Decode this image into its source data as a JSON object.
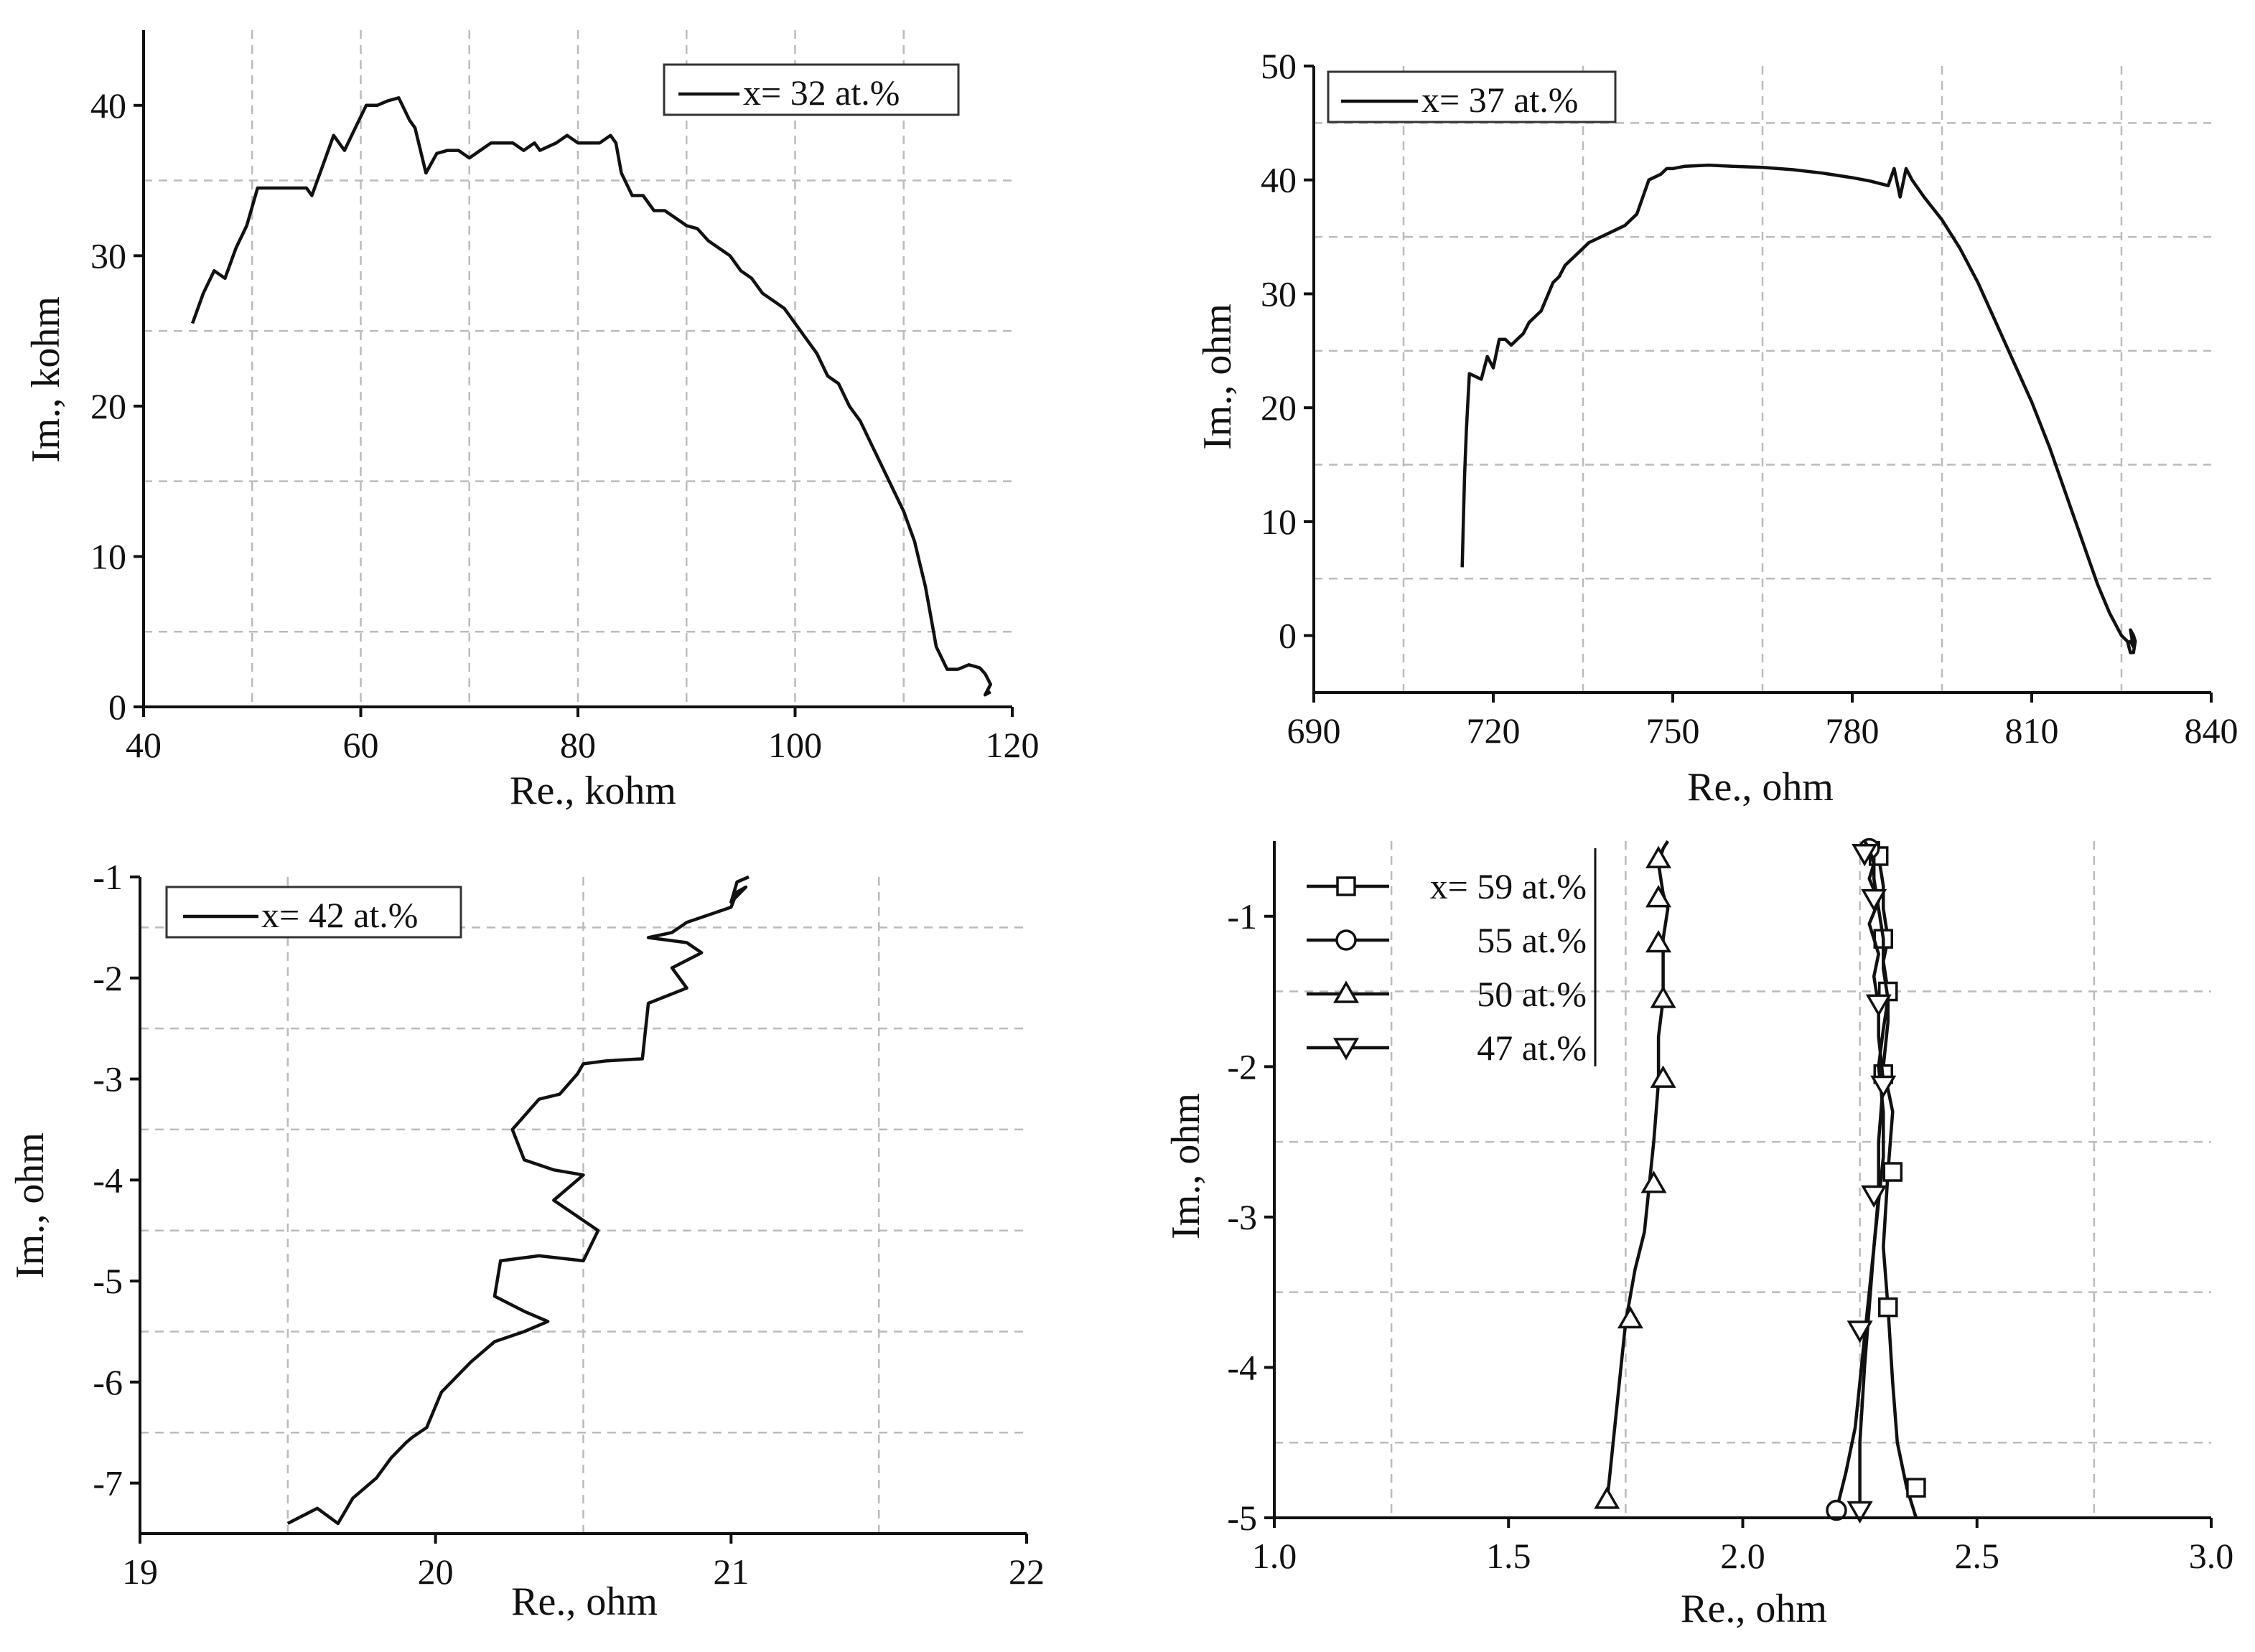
{
  "chart_data": [
    {
      "type": "line",
      "xlabel": "Re., kohm",
      "ylabel": "Im., kohm",
      "xlim": [
        40,
        120
      ],
      "ylim": [
        0,
        45
      ],
      "xticks": [
        40,
        60,
        80,
        100,
        120
      ],
      "yticks": [
        0,
        10,
        20,
        30,
        40
      ],
      "xtick_labels": [
        "40",
        "60",
        "80",
        "100",
        "120"
      ],
      "ytick_labels": [
        "0",
        "10",
        "20",
        "30",
        "40"
      ],
      "xgrid": [
        50,
        60,
        70,
        80,
        90,
        100,
        110
      ],
      "ygrid": [
        5,
        15,
        25,
        35
      ],
      "legend_position": "top-right",
      "series": [
        {
          "name": "x= 32 at.%",
          "marker": "none",
          "x": [
            44.5,
            45.5,
            46.5,
            47.5,
            48.5,
            49.5,
            50.5,
            51.5,
            53,
            55,
            55.5,
            56.5,
            57.5,
            58.5,
            59.5,
            60.5,
            61.5,
            62.5,
            63.5,
            64.5,
            65,
            66,
            67,
            68,
            69,
            70,
            71,
            72,
            73,
            74,
            75,
            76,
            76.5,
            78,
            79,
            80,
            81,
            82,
            83,
            83.5,
            84,
            85,
            86,
            87,
            88,
            89,
            90,
            91,
            92,
            93,
            94,
            95,
            96,
            97,
            98,
            99,
            100,
            101,
            102,
            103,
            104,
            105,
            106,
            107,
            108,
            109,
            110,
            111,
            111.5,
            112,
            112.5,
            113,
            114,
            115,
            116,
            117,
            117.5,
            118,
            117.5,
            118
          ],
          "y": [
            25.5,
            27.5,
            29,
            28.5,
            30.5,
            32,
            34.5,
            34.5,
            34.5,
            34.5,
            34,
            36,
            38,
            37,
            38.5,
            40,
            40,
            40.3,
            40.5,
            39,
            38.5,
            35.5,
            36.8,
            37,
            37,
            36.5,
            37,
            37.5,
            37.5,
            37.5,
            37,
            37.5,
            37,
            37.5,
            38,
            37.5,
            37.5,
            37.5,
            38,
            37.5,
            35.5,
            34,
            34,
            33,
            33,
            32.5,
            32,
            31.8,
            31,
            30.5,
            30,
            29,
            28.5,
            27.5,
            27,
            26.5,
            25.5,
            24.5,
            23.5,
            22,
            21.5,
            20,
            19,
            17.5,
            16,
            14.5,
            13,
            11,
            9.5,
            8,
            6,
            4,
            2.5,
            2.5,
            2.8,
            2.6,
            2.2,
            1.5,
            0.8,
            1
          ],
          "linestyle": "solid"
        }
      ]
    },
    {
      "type": "line",
      "xlabel": "Re., ohm",
      "ylabel": "Im., ohm",
      "xlim": [
        690,
        840
      ],
      "ylim": [
        -5,
        50
      ],
      "xticks": [
        690,
        720,
        750,
        780,
        810,
        840
      ],
      "yticks": [
        0,
        10,
        20,
        30,
        40,
        50
      ],
      "xtick_labels": [
        "690",
        "720",
        "750",
        "780",
        "810",
        "840"
      ],
      "ytick_labels": [
        "0",
        "10",
        "20",
        "30",
        "40",
        "50"
      ],
      "xgrid": [
        705,
        735,
        765,
        795,
        825
      ],
      "ygrid": [
        5,
        15,
        25,
        35,
        45
      ],
      "legend_position": "top-left",
      "series": [
        {
          "name": "x= 37 at.%",
          "marker": "none",
          "x": [
            714.8,
            715,
            715.2,
            715.5,
            716,
            718,
            719,
            720,
            721,
            722,
            723,
            724,
            725,
            726,
            728,
            730,
            731,
            732,
            734,
            736,
            738,
            740,
            742,
            744,
            746,
            748,
            749,
            750,
            752,
            756,
            760,
            765,
            770,
            775,
            780,
            783,
            786,
            787,
            788,
            789,
            790,
            792,
            795,
            798,
            801,
            804,
            807,
            810,
            813,
            816,
            819,
            821,
            823,
            825,
            826,
            826.5,
            827,
            827.3,
            827,
            826.5,
            827,
            826.5,
            827
          ],
          "y": [
            6,
            10,
            14,
            18,
            23,
            22.5,
            24.5,
            23.5,
            26,
            26,
            25.5,
            26,
            26.5,
            27.5,
            28.5,
            31,
            31.5,
            32.5,
            33.5,
            34.5,
            35,
            35.5,
            36,
            37,
            40,
            40.5,
            41,
            41,
            41.2,
            41.3,
            41.2,
            41.1,
            40.9,
            40.6,
            40.2,
            39.9,
            39.5,
            41,
            38.5,
            41,
            40,
            38.5,
            36.5,
            34,
            31,
            27.5,
            24,
            20.5,
            16.5,
            12,
            7.5,
            4.5,
            2,
            0,
            -0.5,
            -1.5,
            -1.5,
            -0.5,
            0,
            0.5,
            -1,
            -0.5,
            -1
          ],
          "linestyle": "solid"
        }
      ]
    },
    {
      "type": "line",
      "xlabel": "Re., ohm",
      "ylabel": "Im., ohm",
      "xlim": [
        19,
        22
      ],
      "ylim": [
        -7.5,
        -1
      ],
      "xticks": [
        19,
        20,
        21,
        22
      ],
      "yticks": [
        -7,
        -6,
        -5,
        -4,
        -3,
        -2,
        -1
      ],
      "xtick_labels": [
        "19",
        "20",
        "21",
        "22"
      ],
      "ytick_labels": [
        "-7",
        "-6",
        "-5",
        "-4",
        "-3",
        "-2",
        "-1"
      ],
      "xgrid": [
        19.5,
        20.5,
        21.5
      ],
      "ygrid": [
        -1.5,
        -2.5,
        -3.5,
        -4.5,
        -5.5,
        -6.5
      ],
      "legend_position": "top-left",
      "series": [
        {
          "name": "x= 42 at.%",
          "marker": "none",
          "x": [
            19.5,
            19.6,
            19.67,
            19.72,
            19.78,
            19.8,
            19.85,
            19.9,
            19.92,
            19.97,
            20.02,
            20.07,
            20.12,
            20.2,
            20.3,
            20.38,
            20.3,
            20.2,
            20.22,
            20.35,
            20.5,
            20.55,
            20.4,
            20.5,
            20.4,
            20.3,
            20.26,
            20.35,
            20.42,
            20.48,
            20.5,
            20.58,
            20.7,
            20.72,
            20.85,
            20.8,
            20.9,
            20.85,
            20.72,
            20.8,
            20.85,
            20.9,
            21.0,
            21.02,
            21.05,
            21.0,
            21.02,
            21.06
          ],
          "y": [
            -7.4,
            -7.25,
            -7.4,
            -7.15,
            -7.0,
            -6.95,
            -6.75,
            -6.6,
            -6.55,
            -6.45,
            -6.1,
            -5.95,
            -5.8,
            -5.6,
            -5.5,
            -5.4,
            -5.3,
            -5.15,
            -4.8,
            -4.75,
            -4.8,
            -4.5,
            -4.2,
            -3.95,
            -3.9,
            -3.8,
            -3.5,
            -3.2,
            -3.15,
            -2.95,
            -2.85,
            -2.82,
            -2.8,
            -2.25,
            -2.1,
            -1.9,
            -1.75,
            -1.65,
            -1.6,
            -1.55,
            -1.45,
            -1.4,
            -1.3,
            -1.15,
            -1.1,
            -1.25,
            -1.05,
            -1.0
          ],
          "linestyle": "solid"
        }
      ]
    },
    {
      "type": "line",
      "xlabel": "Re., ohm",
      "ylabel": "Im., ohm",
      "xlim": [
        1.0,
        3.0
      ],
      "ylim": [
        -5,
        -0.5
      ],
      "xticks": [
        1.0,
        1.5,
        2.0,
        2.5,
        3.0
      ],
      "yticks": [
        -5,
        -4,
        -3,
        -2,
        -1
      ],
      "xtick_labels": [
        "1.0",
        "1.5",
        "2.0",
        "2.5",
        "3.0"
      ],
      "ytick_labels": [
        "-5",
        "-4",
        "-3",
        "-2",
        "-1"
      ],
      "xgrid": [
        1.25,
        1.75,
        2.25,
        2.75
      ],
      "ygrid": [
        -1.5,
        -2.5,
        -3.5,
        -4.5
      ],
      "legend_position": "top-left",
      "series": [
        {
          "name": "x= 59 at.%",
          "marker": "square",
          "x": [
            2.37,
            2.35,
            2.33,
            2.32,
            2.31,
            2.3,
            2.31,
            2.32,
            2.3,
            2.31,
            2.31,
            2.3,
            2.31,
            2.3,
            2.3,
            2.29,
            2.29
          ],
          "y": [
            -5.0,
            -4.8,
            -4.5,
            -4.1,
            -3.6,
            -3.2,
            -2.7,
            -2.3,
            -2.0,
            -1.7,
            -1.5,
            -1.3,
            -1.15,
            -0.95,
            -0.8,
            -0.6,
            -0.5
          ],
          "marker_x": [
            2.37,
            2.31,
            2.32,
            2.3,
            2.31,
            2.3,
            2.29
          ],
          "marker_y": [
            -4.8,
            -3.6,
            -2.7,
            -2.05,
            -1.5,
            -1.15,
            -0.6
          ],
          "linestyle": "solid"
        },
        {
          "name": "55 at.%",
          "marker": "circle",
          "x": [
            2.2,
            2.22,
            2.24,
            2.25,
            2.26,
            2.27,
            2.28,
            2.29,
            2.3,
            2.3,
            2.29,
            2.3,
            2.31,
            2.3,
            2.3,
            2.29,
            2.28,
            2.28,
            2.27
          ],
          "y": [
            -4.95,
            -4.7,
            -4.4,
            -4.1,
            -3.8,
            -3.5,
            -3.2,
            -2.9,
            -2.6,
            -2.3,
            -2.0,
            -1.75,
            -1.55,
            -1.35,
            -1.15,
            -0.95,
            -0.75,
            -0.6,
            -0.5
          ],
          "marker_x": [
            2.2,
            2.27
          ],
          "marker_y": [
            -4.95,
            -0.55
          ],
          "linestyle": "solid"
        },
        {
          "name": "50 at.%",
          "marker": "triangle-up",
          "x": [
            1.71,
            1.72,
            1.73,
            1.74,
            1.75,
            1.77,
            1.79,
            1.8,
            1.81,
            1.82,
            1.82,
            1.83,
            1.83,
            1.83,
            1.84,
            1.83,
            1.82,
            1.83,
            1.84
          ],
          "y": [
            -4.9,
            -4.6,
            -4.3,
            -4.0,
            -3.7,
            -3.35,
            -3.1,
            -2.8,
            -2.5,
            -2.1,
            -1.8,
            -1.55,
            -1.35,
            -1.15,
            -0.95,
            -0.85,
            -0.65,
            -0.55,
            -0.5
          ],
          "marker_x": [
            1.71,
            1.76,
            1.81,
            1.83,
            1.83,
            1.82,
            1.82,
            1.82
          ],
          "marker_y": [
            -4.88,
            -3.68,
            -2.78,
            -2.08,
            -1.55,
            -1.18,
            -0.88,
            -0.62
          ],
          "linestyle": "solid"
        },
        {
          "name": "47 at.%",
          "marker": "triangle-down",
          "x": [
            2.25,
            2.25,
            2.26,
            2.27,
            2.28,
            2.29,
            2.29,
            2.3,
            2.29,
            2.29,
            2.28,
            2.29,
            2.27,
            2.29,
            2.27,
            2.28,
            2.27,
            2.26
          ],
          "y": [
            -4.95,
            -4.5,
            -4.0,
            -3.6,
            -3.2,
            -2.85,
            -2.5,
            -2.1,
            -1.8,
            -1.6,
            -1.4,
            -1.25,
            -1.05,
            -0.9,
            -0.75,
            -0.65,
            -0.55,
            -0.5
          ],
          "marker_x": [
            2.25,
            2.25,
            2.28,
            2.3,
            2.29,
            2.28,
            2.26
          ],
          "marker_y": [
            -4.95,
            -3.75,
            -2.85,
            -2.12,
            -1.58,
            -0.88,
            -0.58
          ],
          "linestyle": "solid"
        }
      ]
    }
  ]
}
